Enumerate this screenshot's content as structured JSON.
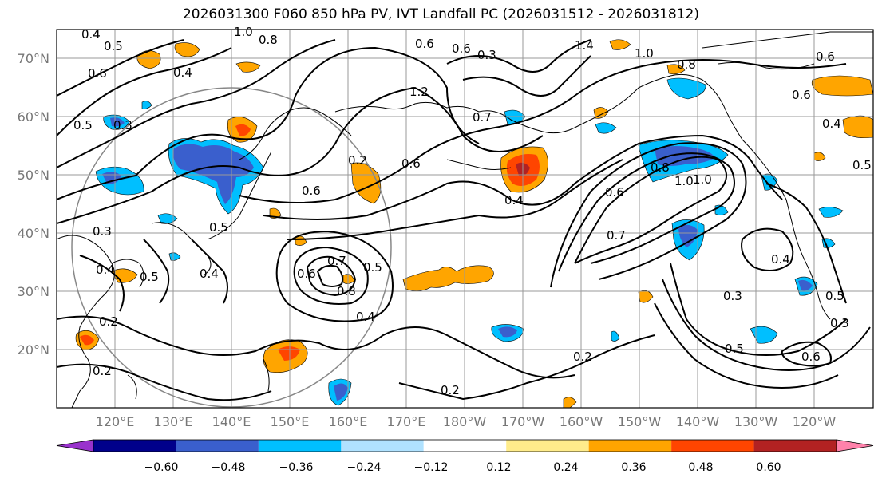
{
  "title": "2026031300 F060 850 hPa PV, IVT Landfall PC (2026031512 - 2026031812)",
  "lat_labels": [
    "70°N",
    "60°N",
    "50°N",
    "40°N",
    "30°N",
    "20°N"
  ],
  "lon_labels": [
    "120°E",
    "130°E",
    "140°E",
    "150°E",
    "160°E",
    "170°E",
    "180°W",
    "170°W",
    "160°W",
    "150°W",
    "140°W",
    "130°W",
    "120°W"
  ],
  "colorbar": {
    "colors": [
      "#9932cc",
      "#00008b",
      "#3a5fcd",
      "#00bfff",
      "#b0e2ff",
      "#ffffff",
      "#ffec8b",
      "#ffa500",
      "#ff4500",
      "#b22222",
      "#ff82ab"
    ],
    "ticks": [
      "−0.60",
      "−0.48",
      "−0.36",
      "−0.24",
      "−0.12",
      "0.12",
      "0.24",
      "0.36",
      "0.48",
      "0.60"
    ]
  },
  "contour_labels": [
    "0.4",
    "0.5",
    "0.6",
    "1.0",
    "0.8",
    "0.4",
    "0.5",
    "0.3",
    "0.6",
    "1.2",
    "0.6",
    "0.3",
    "1.4",
    "1.0",
    "0.8",
    "0.6",
    "0.4",
    "0.5",
    "0.7",
    "1.0",
    "0.8",
    "0.6",
    "0.6",
    "0.5",
    "0.3",
    "0.4",
    "0.5",
    "0.4",
    "0.2",
    "0.2",
    "0.6",
    "0.7",
    "0.8",
    "0.5",
    "0.4",
    "0.2",
    "0.2",
    "0.6",
    "1.0",
    "0.7",
    "0.4",
    "0.3",
    "0.5",
    "0.6",
    "0.3",
    "0.5",
    "0.4",
    "0.6",
    "0.2"
  ]
}
